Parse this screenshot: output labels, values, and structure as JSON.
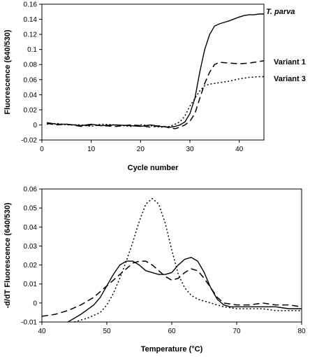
{
  "chart_data": [
    {
      "type": "line",
      "xlabel": "Cycle number",
      "ylabel": "Fluorescence (640/530)",
      "xlim": [
        0,
        45
      ],
      "ylim": [
        -0.02,
        0.16
      ],
      "xticks": [
        "0",
        "10",
        "20",
        "30",
        "40"
      ],
      "xtick_values": [
        0,
        10,
        20,
        30,
        40
      ],
      "yticks": [
        "-0.02",
        "0",
        "0.02",
        "0.04",
        "0.06",
        "0.08",
        "0.1",
        "0.12",
        "0.14",
        "0.16"
      ],
      "ytick_values": [
        -0.02,
        0,
        0.02,
        0.04,
        0.06,
        0.08,
        0.1,
        0.12,
        0.14,
        0.16
      ],
      "grid": false,
      "legend": "right, labels at line ends",
      "series": [
        {
          "name": "T. parva",
          "style": "solid",
          "x": [
            1,
            3,
            5,
            8,
            10,
            12,
            15,
            18,
            20,
            22,
            24,
            26,
            27,
            28,
            29,
            30,
            31,
            32,
            33,
            34,
            35,
            36,
            38,
            40,
            41,
            42,
            43,
            44,
            45
          ],
          "y": [
            0.003,
            0.001,
            0.001,
            -0.001,
            0.001,
            -0.001,
            0.0,
            -0.001,
            -0.002,
            0.0,
            -0.002,
            -0.003,
            -0.002,
            0.0,
            0.004,
            0.015,
            0.035,
            0.07,
            0.1,
            0.12,
            0.131,
            0.134,
            0.138,
            0.143,
            0.145,
            0.146,
            0.146,
            0.147,
            0.147
          ]
        },
        {
          "name": "Variant 1",
          "style": "dashed",
          "x": [
            1,
            3,
            5,
            8,
            10,
            12,
            15,
            18,
            20,
            22,
            24,
            26,
            27,
            28,
            29,
            30,
            31,
            32,
            33,
            34,
            35,
            36,
            38,
            40,
            42,
            43,
            44,
            45
          ],
          "y": [
            0.002,
            0.0,
            0.001,
            -0.002,
            0.0,
            -0.001,
            -0.002,
            0.0,
            -0.001,
            -0.003,
            -0.001,
            -0.004,
            -0.005,
            -0.003,
            0.0,
            0.005,
            0.015,
            0.035,
            0.055,
            0.07,
            0.08,
            0.083,
            0.082,
            0.081,
            0.082,
            0.083,
            0.084,
            0.085
          ]
        },
        {
          "name": "Variant 3",
          "style": "dotted",
          "x": [
            1,
            3,
            5,
            8,
            10,
            12,
            15,
            18,
            20,
            22,
            24,
            26,
            27,
            28,
            29,
            30,
            31,
            32,
            33,
            34,
            35,
            36,
            38,
            40,
            42,
            44,
            45
          ],
          "y": [
            0.001,
            0.002,
            0.0,
            0.0,
            -0.002,
            0.001,
            0.0,
            -0.002,
            0.0,
            -0.001,
            -0.003,
            -0.002,
            0.001,
            0.004,
            0.012,
            0.025,
            0.035,
            0.045,
            0.052,
            0.054,
            0.055,
            0.056,
            0.058,
            0.061,
            0.063,
            0.064,
            0.064
          ]
        }
      ]
    },
    {
      "type": "line",
      "xlabel": "Temperature (°C)",
      "ylabel": "-d/dT Fluorescence (640/530)",
      "xlim": [
        40,
        80
      ],
      "ylim": [
        -0.01,
        0.06
      ],
      "xticks": [
        "40",
        "50",
        "60",
        "70",
        "80"
      ],
      "xtick_values": [
        40,
        50,
        60,
        70,
        80
      ],
      "yticks": [
        "-0.01",
        "0",
        "0.01",
        "0.02",
        "0.03",
        "0.04",
        "0.05",
        "0.06"
      ],
      "ytick_values": [
        -0.01,
        0,
        0.01,
        0.02,
        0.03,
        0.04,
        0.05,
        0.06
      ],
      "grid": false,
      "legend": "none",
      "series": [
        {
          "style": "solid",
          "x": [
            44,
            46,
            48,
            49,
            50,
            51,
            52,
            53,
            54,
            55,
            56,
            57,
            58,
            59,
            60,
            61,
            62,
            63,
            64,
            65,
            66,
            67,
            68,
            69,
            70,
            72,
            74,
            76,
            78,
            80
          ],
          "y": [
            -0.01,
            -0.006,
            -0.001,
            0.003,
            0.009,
            0.015,
            0.02,
            0.022,
            0.022,
            0.02,
            0.017,
            0.016,
            0.015,
            0.015,
            0.016,
            0.02,
            0.023,
            0.024,
            0.022,
            0.016,
            0.008,
            0.002,
            -0.001,
            -0.002,
            -0.002,
            -0.002,
            -0.002,
            -0.002,
            -0.003,
            -0.003
          ]
        },
        {
          "style": "dashed",
          "x": [
            40,
            42,
            44,
            46,
            48,
            50,
            51,
            52,
            53,
            54,
            55,
            56,
            57,
            58,
            59,
            60,
            61,
            62,
            63,
            64,
            65,
            66,
            67,
            68,
            70,
            72,
            74,
            76,
            78,
            80
          ],
          "y": [
            -0.007,
            -0.006,
            -0.004,
            -0.001,
            0.003,
            0.009,
            0.012,
            0.015,
            0.018,
            0.021,
            0.022,
            0.022,
            0.02,
            0.017,
            0.014,
            0.012,
            0.013,
            0.016,
            0.018,
            0.017,
            0.013,
            0.008,
            0.003,
            0.0,
            -0.001,
            -0.001,
            0.0,
            -0.001,
            -0.001,
            -0.002
          ]
        },
        {
          "style": "dotted",
          "x": [
            45,
            47,
            49,
            50,
            51,
            52,
            53,
            54,
            55,
            56,
            57,
            58,
            59,
            60,
            61,
            62,
            63,
            64,
            65,
            66,
            67,
            68,
            70,
            72,
            74,
            76,
            78,
            80
          ],
          "y": [
            -0.01,
            -0.008,
            -0.005,
            -0.001,
            0.005,
            0.013,
            0.022,
            0.032,
            0.043,
            0.052,
            0.055,
            0.052,
            0.042,
            0.028,
            0.015,
            0.008,
            0.004,
            0.002,
            0.001,
            0.0,
            -0.001,
            -0.002,
            -0.003,
            -0.003,
            -0.003,
            -0.004,
            -0.004,
            -0.004
          ]
        }
      ]
    }
  ],
  "annotations": {
    "top_legend": [
      {
        "text": "T. parva",
        "italic": true
      },
      {
        "text": "Variant 1",
        "italic": false
      },
      {
        "text": "Variant 3",
        "italic": false
      }
    ]
  }
}
